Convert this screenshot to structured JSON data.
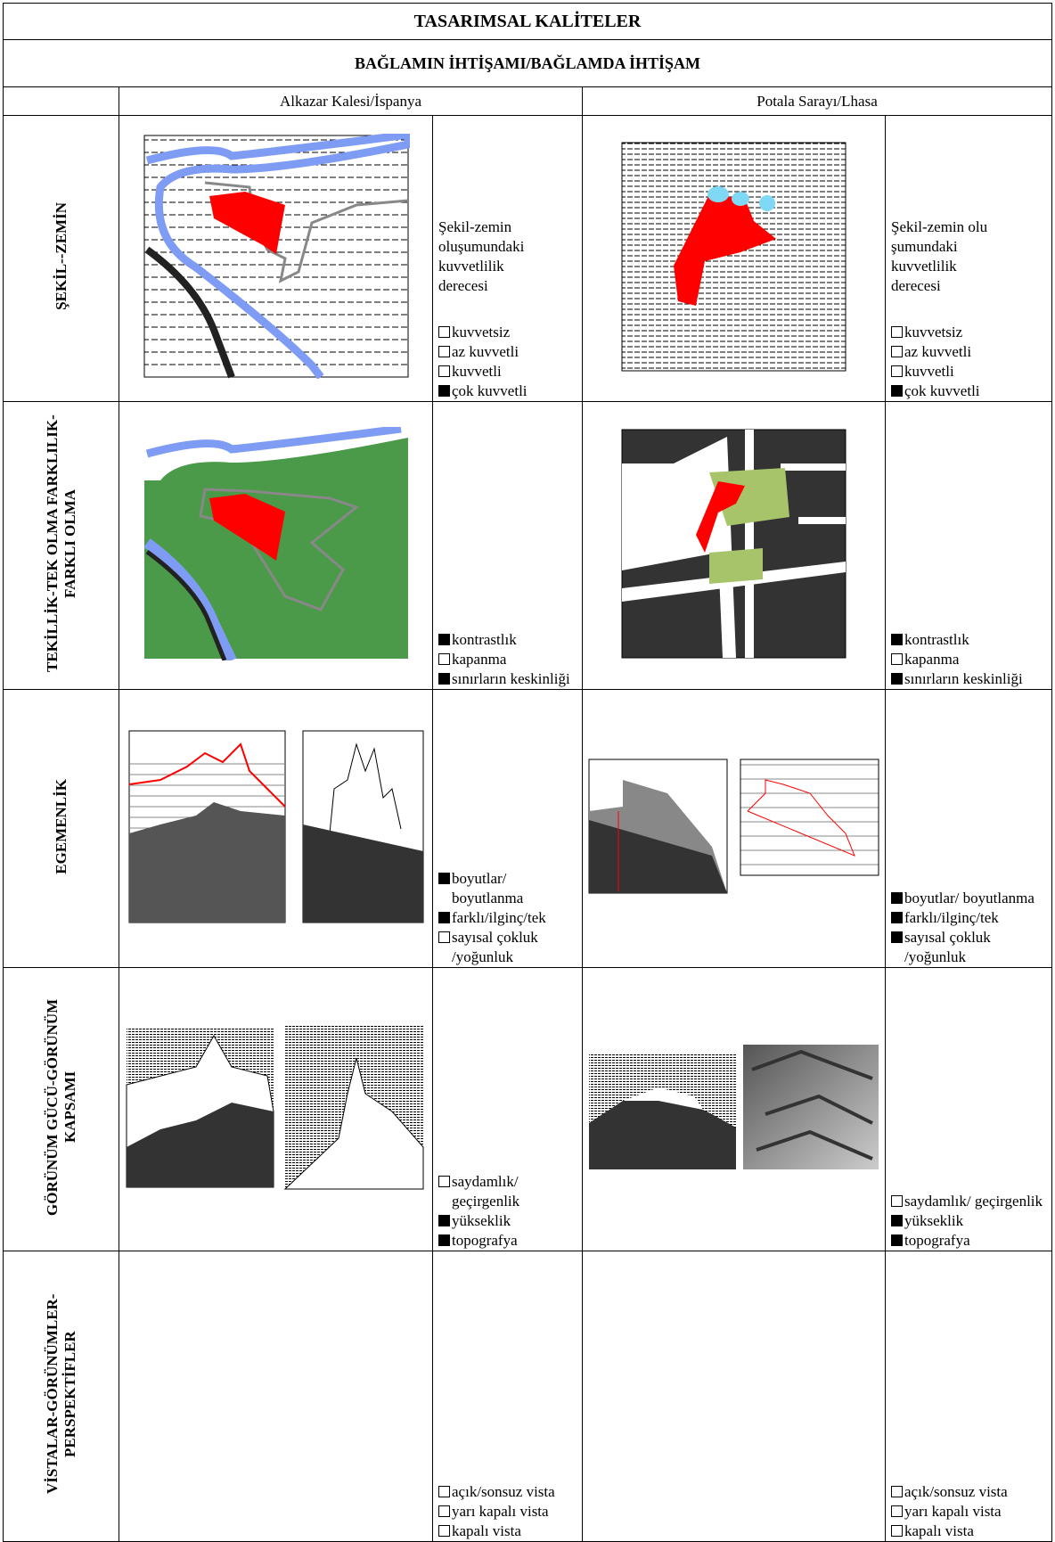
{
  "header": {
    "title": "TASARIMSAL KALİTELER",
    "subtitle": "BAĞLAMIN İHTİŞAMI/BAĞLAMDA  İHTİŞAM"
  },
  "columns": [
    "Alkazar Kalesi/İspanya",
    "Potala Sarayı/Lhasa"
  ],
  "rows": [
    {
      "label": "ŞEKİL--ZEMİN",
      "cells": [
        {
          "caption": "Şekil-zemin oluşumundaki kuvvetlilik derecesi",
          "options": [
            {
              "text": "kuvvetsiz",
              "checked": false
            },
            {
              "text": "az kuvvetli",
              "checked": false
            },
            {
              "text": "kuvvetli",
              "checked": false
            },
            {
              "text": "çok kuvvetli",
              "checked": true
            }
          ]
        },
        {
          "caption": "Şekil-zemin olu şumundaki kuvvetlilik derecesi",
          "options": [
            {
              "text": "kuvvetsiz",
              "checked": false
            },
            {
              "text": "az kuvvetli",
              "checked": false
            },
            {
              "text": "kuvvetli",
              "checked": false
            },
            {
              "text": "çok kuvvetli",
              "checked": true
            }
          ]
        }
      ]
    },
    {
      "label": "TEKİLLİK-TEK OLMA FARKLILIK-FARKLI OLMA",
      "cells": [
        {
          "options": [
            {
              "text": "kontrastlık",
              "checked": true
            },
            {
              "text": "kapanma",
              "checked": false
            },
            {
              "text": "sınırların keskinliği",
              "checked": true
            }
          ]
        },
        {
          "options": [
            {
              "text": "kontrastlık",
              "checked": true
            },
            {
              "text": "kapanma",
              "checked": false
            },
            {
              "text": "sınırların keskinliği",
              "checked": true
            }
          ]
        }
      ]
    },
    {
      "label": "EGEMENLİK",
      "cells": [
        {
          "options": [
            {
              "text": "boyutlar/ boyutlanma",
              "checked": true
            },
            {
              "text": "farklı/ilginç/tek",
              "checked": true
            },
            {
              "text": "sayısal çokluk /yoğunluk",
              "checked": false
            }
          ]
        },
        {
          "options": [
            {
              "text": "boyutlar/ boyutlanma",
              "checked": true
            },
            {
              "text": "farklı/ilginç/tek",
              "checked": true
            },
            {
              "text": "sayısal çokluk /yoğunluk",
              "checked": true
            }
          ]
        }
      ]
    },
    {
      "label": "GÖRÜNÜM GÜCÜ-GÖRÜNÜM KAPSAMI",
      "cells": [
        {
          "options": [
            {
              "text": "saydamlık/ geçirgenlik",
              "checked": false
            },
            {
              "text": "yükseklik",
              "checked": true
            },
            {
              "text": "topografya",
              "checked": true
            }
          ]
        },
        {
          "options": [
            {
              "text": "saydamlık/ geçirgenlik",
              "checked": false
            },
            {
              "text": "yükseklik",
              "checked": true
            },
            {
              "text": "topografya",
              "checked": true
            }
          ]
        }
      ]
    },
    {
      "label": "VİSTALAR-GÖRÜNÜMLER-PERSPEKTİFLER",
      "cells": [
        {
          "options": [
            {
              "text": "açık/sonsuz vista",
              "checked": false
            },
            {
              "text": "yarı kapalı vista",
              "checked": false
            },
            {
              "text": "kapalı vista",
              "checked": false
            }
          ]
        },
        {
          "options": [
            {
              "text": "açık/sonsuz vista",
              "checked": false
            },
            {
              "text": "yarı kapalı vista",
              "checked": false
            },
            {
              "text": "kapalı vista",
              "checked": false
            }
          ]
        }
      ]
    }
  ]
}
